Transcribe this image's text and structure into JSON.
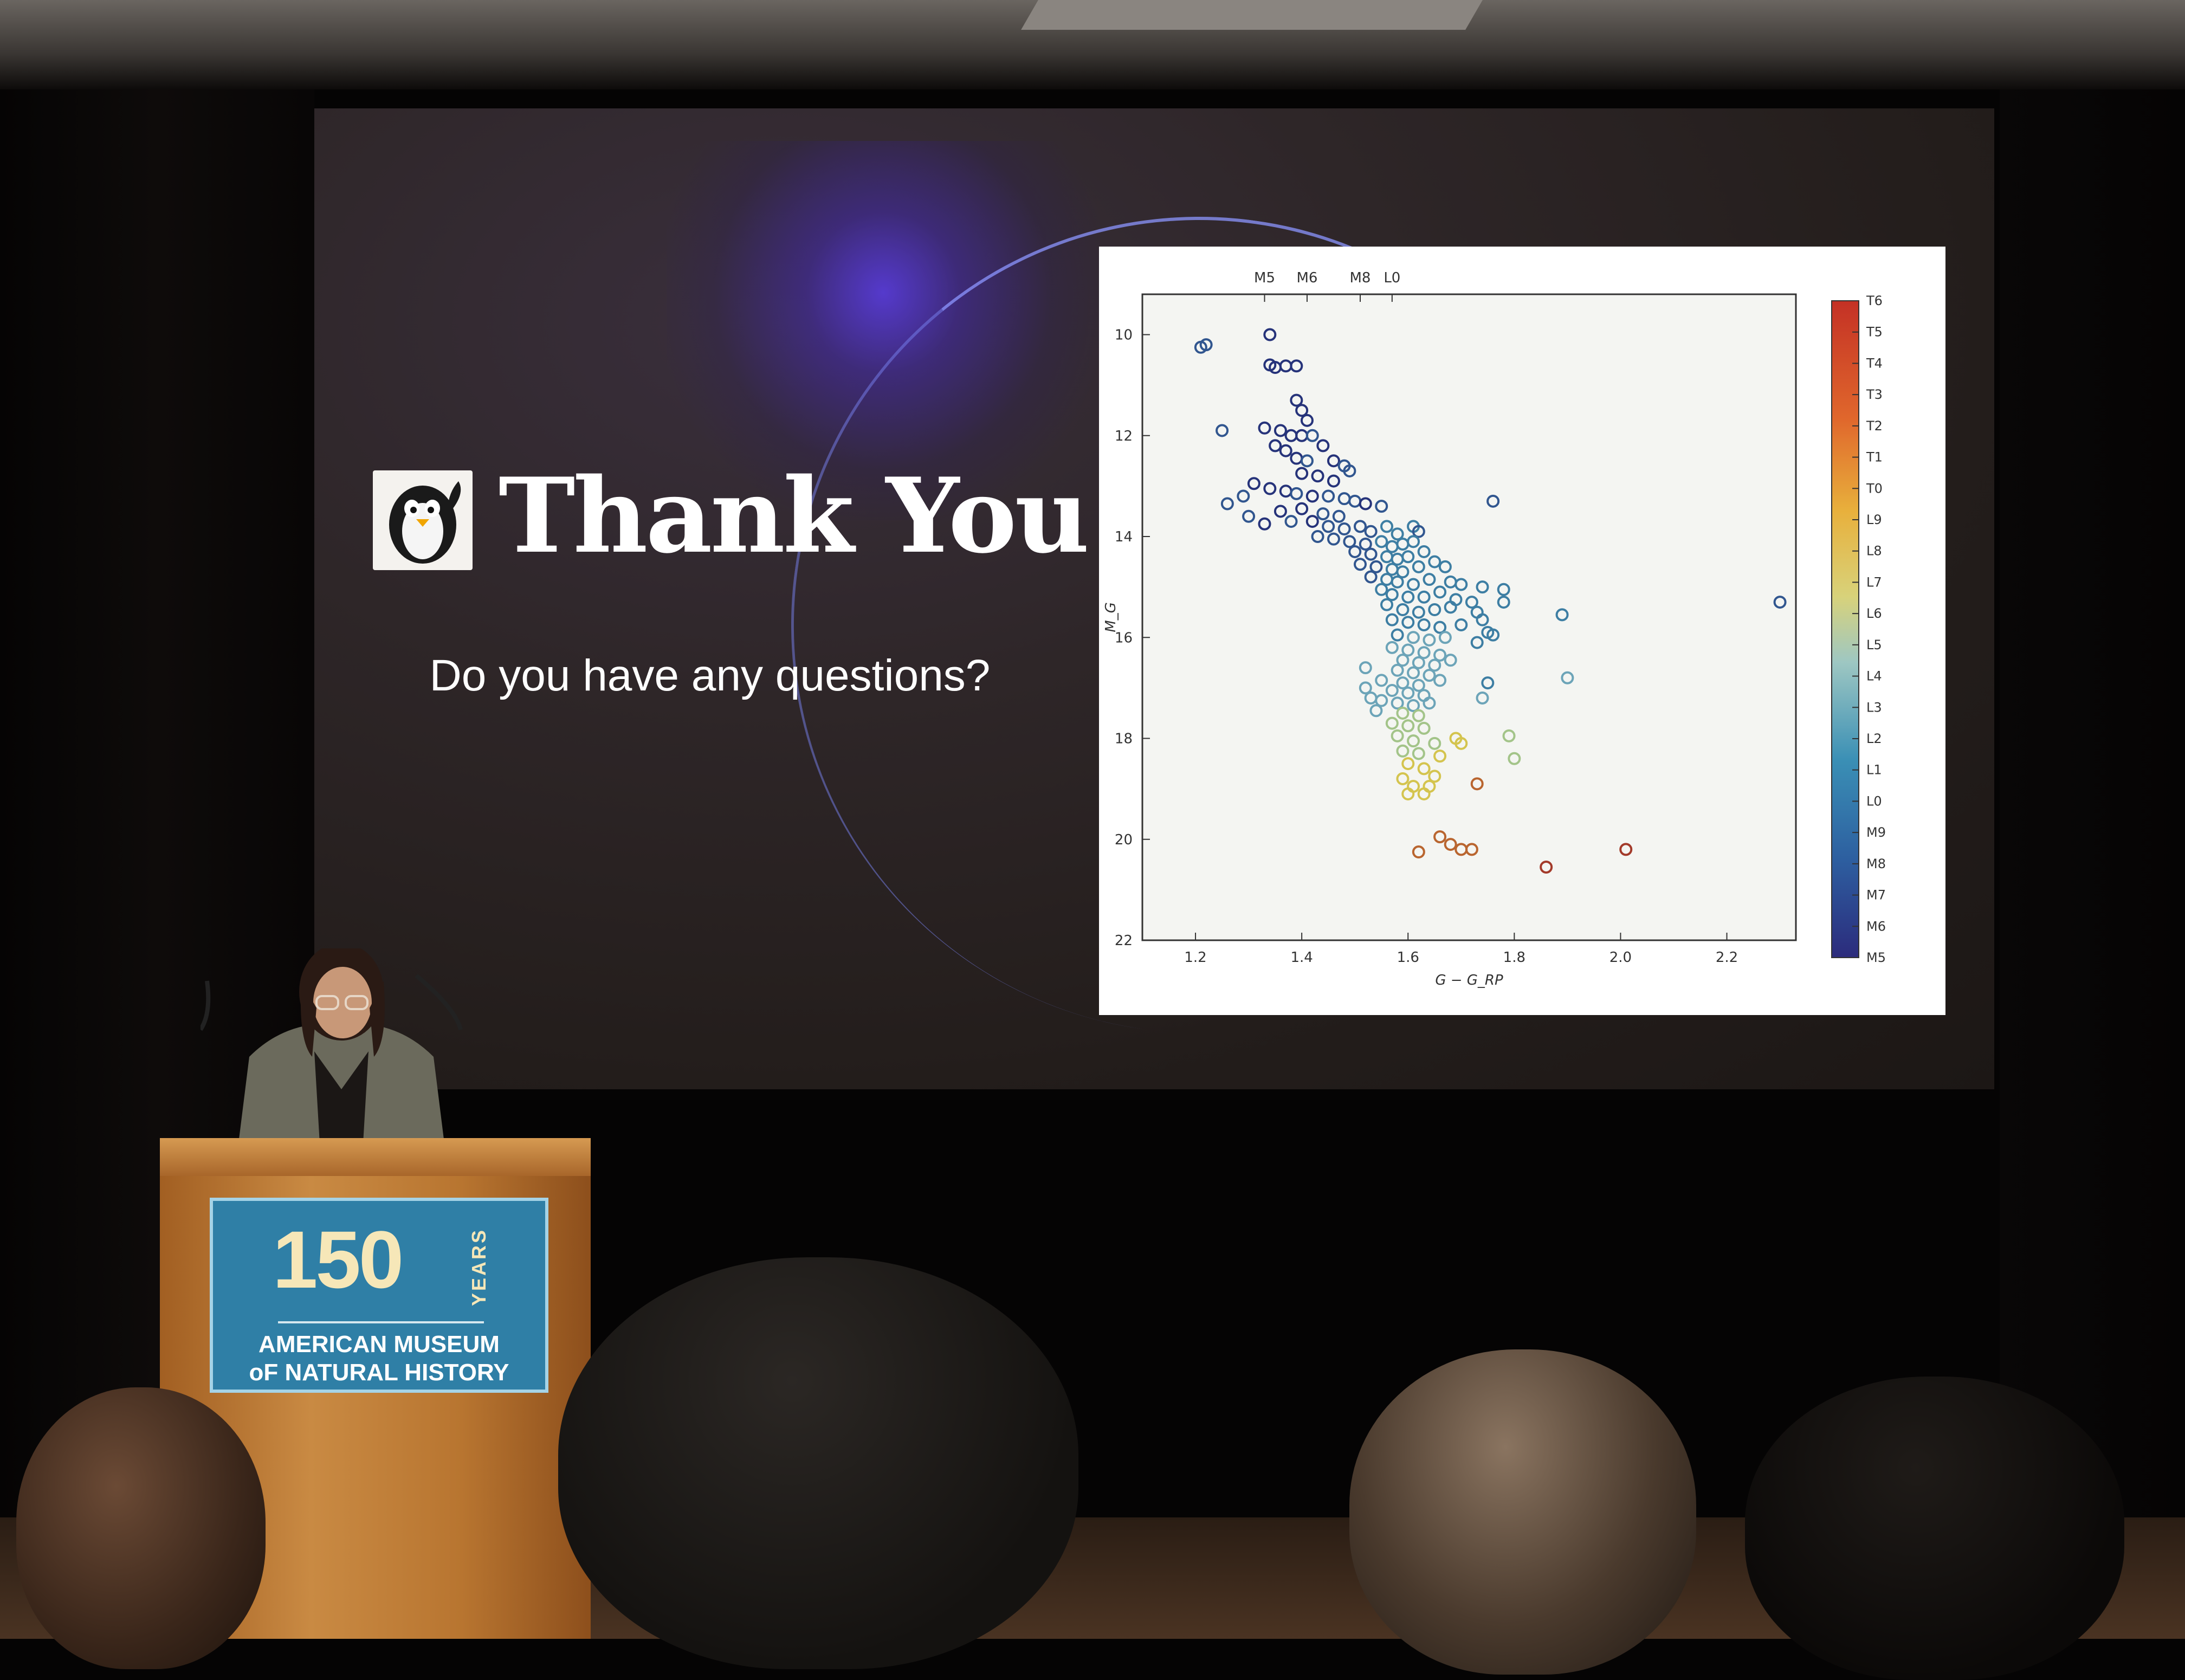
{
  "slide": {
    "title": "Thank You",
    "subtitle": "Do you have any questions?",
    "logo_icon": "penguin-icon"
  },
  "podium_sign": {
    "number": "150",
    "years": "YEARS",
    "line1": "AMERICAN MUSEUM",
    "line2": "oF NATURAL HISTORY"
  },
  "chart_data": {
    "type": "scatter",
    "title": "",
    "xlabel": "G − G_RP",
    "ylabel": "M_G",
    "xlim": [
      1.1,
      2.33
    ],
    "ylim": [
      22,
      9.2
    ],
    "y_inverted": true,
    "x_ticks": [
      "1.2",
      "1.4",
      "1.6",
      "1.8",
      "2.0",
      "2.2"
    ],
    "x_tick_values": [
      1.2,
      1.4,
      1.6,
      1.8,
      2.0,
      2.2
    ],
    "y_ticks": [
      "10",
      "12",
      "14",
      "16",
      "18",
      "20",
      "22"
    ],
    "y_tick_values": [
      10,
      12,
      14,
      16,
      18,
      20,
      22
    ],
    "top_ticks": [
      "M5",
      "M6",
      "M8",
      "L0"
    ],
    "top_tick_values": [
      1.33,
      1.41,
      1.51,
      1.57
    ],
    "colorbar_labels": [
      "T6",
      "T5",
      "T4",
      "T3",
      "T2",
      "T1",
      "T0",
      "L9",
      "L8",
      "L7",
      "L6",
      "L5",
      "L4",
      "L3",
      "L2",
      "L1",
      "L0",
      "M9",
      "M8",
      "M7",
      "M6",
      "M5"
    ],
    "marker": "open-circle",
    "points": [
      [
        1.21,
        10.25,
        1
      ],
      [
        1.22,
        10.2,
        1
      ],
      [
        1.34,
        10.0,
        0
      ],
      [
        1.34,
        10.6,
        0
      ],
      [
        1.35,
        10.65,
        0
      ],
      [
        1.37,
        10.62,
        0
      ],
      [
        1.39,
        10.62,
        0
      ],
      [
        1.25,
        11.9,
        1
      ],
      [
        1.39,
        11.3,
        0
      ],
      [
        1.4,
        11.5,
        0
      ],
      [
        1.41,
        11.7,
        0
      ],
      [
        1.33,
        11.85,
        0
      ],
      [
        1.36,
        11.9,
        0
      ],
      [
        1.38,
        12.0,
        0
      ],
      [
        1.4,
        12.0,
        0
      ],
      [
        1.42,
        12.0,
        1
      ],
      [
        1.35,
        12.2,
        0
      ],
      [
        1.37,
        12.3,
        0
      ],
      [
        1.44,
        12.2,
        0
      ],
      [
        1.39,
        12.45,
        0
      ],
      [
        1.41,
        12.5,
        1
      ],
      [
        1.46,
        12.5,
        0
      ],
      [
        1.48,
        12.6,
        1
      ],
      [
        1.4,
        12.75,
        0
      ],
      [
        1.43,
        12.8,
        0
      ],
      [
        1.46,
        12.9,
        0
      ],
      [
        1.49,
        12.7,
        1
      ],
      [
        1.31,
        12.95,
        0
      ],
      [
        1.34,
        13.05,
        0
      ],
      [
        1.37,
        13.1,
        0
      ],
      [
        1.39,
        13.15,
        1
      ],
      [
        1.42,
        13.2,
        0
      ],
      [
        1.45,
        13.2,
        1
      ],
      [
        1.48,
        13.25,
        1
      ],
      [
        1.5,
        13.3,
        1
      ],
      [
        1.52,
        13.35,
        0
      ],
      [
        1.29,
        13.2,
        1
      ],
      [
        1.26,
        13.35,
        1
      ],
      [
        1.3,
        13.6,
        1
      ],
      [
        1.36,
        13.5,
        0
      ],
      [
        1.4,
        13.45,
        0
      ],
      [
        1.44,
        13.55,
        1
      ],
      [
        1.47,
        13.6,
        1
      ],
      [
        1.55,
        13.4,
        1
      ],
      [
        1.33,
        13.75,
        0
      ],
      [
        1.38,
        13.7,
        1
      ],
      [
        1.42,
        13.7,
        0
      ],
      [
        1.45,
        13.8,
        1
      ],
      [
        1.48,
        13.85,
        1
      ],
      [
        1.51,
        13.8,
        1
      ],
      [
        1.53,
        13.9,
        1
      ],
      [
        1.56,
        13.8,
        2
      ],
      [
        1.58,
        13.95,
        2
      ],
      [
        1.61,
        13.8,
        2
      ],
      [
        1.62,
        13.9,
        1
      ],
      [
        1.43,
        14.0,
        1
      ],
      [
        1.46,
        14.05,
        1
      ],
      [
        1.49,
        14.1,
        1
      ],
      [
        1.52,
        14.15,
        1
      ],
      [
        1.55,
        14.1,
        2
      ],
      [
        1.57,
        14.2,
        2
      ],
      [
        1.59,
        14.15,
        2
      ],
      [
        1.61,
        14.1,
        2
      ],
      [
        1.5,
        14.3,
        1
      ],
      [
        1.53,
        14.35,
        1
      ],
      [
        1.56,
        14.4,
        2
      ],
      [
        1.58,
        14.45,
        2
      ],
      [
        1.6,
        14.4,
        2
      ],
      [
        1.63,
        14.3,
        2
      ],
      [
        1.51,
        14.55,
        1
      ],
      [
        1.54,
        14.6,
        1
      ],
      [
        1.57,
        14.65,
        2
      ],
      [
        1.59,
        14.7,
        2
      ],
      [
        1.62,
        14.6,
        2
      ],
      [
        1.65,
        14.5,
        2
      ],
      [
        1.67,
        14.6,
        2
      ],
      [
        1.53,
        14.8,
        1
      ],
      [
        1.56,
        14.85,
        2
      ],
      [
        1.58,
        14.9,
        2
      ],
      [
        1.61,
        14.95,
        2
      ],
      [
        1.64,
        14.85,
        2
      ],
      [
        1.68,
        14.9,
        2
      ],
      [
        1.7,
        14.95,
        2
      ],
      [
        1.74,
        15.0,
        2
      ],
      [
        1.55,
        15.05,
        2
      ],
      [
        1.57,
        15.15,
        2
      ],
      [
        1.6,
        15.2,
        2
      ],
      [
        1.63,
        15.2,
        2
      ],
      [
        1.66,
        15.1,
        2
      ],
      [
        1.69,
        15.25,
        2
      ],
      [
        1.72,
        15.3,
        2
      ],
      [
        1.56,
        15.35,
        2
      ],
      [
        1.59,
        15.45,
        2
      ],
      [
        1.62,
        15.5,
        2
      ],
      [
        1.65,
        15.45,
        2
      ],
      [
        1.68,
        15.4,
        2
      ],
      [
        1.73,
        15.5,
        2
      ],
      [
        1.78,
        15.3,
        2
      ],
      [
        1.57,
        15.65,
        2
      ],
      [
        1.6,
        15.7,
        2
      ],
      [
        1.63,
        15.75,
        2
      ],
      [
        1.66,
        15.8,
        2
      ],
      [
        1.7,
        15.75,
        2
      ],
      [
        1.75,
        15.9,
        2
      ],
      [
        1.58,
        15.95,
        2
      ],
      [
        1.61,
        16.0,
        3
      ],
      [
        1.64,
        16.05,
        3
      ],
      [
        1.67,
        16.0,
        3
      ],
      [
        1.73,
        16.1,
        2
      ],
      [
        1.57,
        16.2,
        3
      ],
      [
        1.6,
        16.25,
        3
      ],
      [
        1.63,
        16.3,
        3
      ],
      [
        1.66,
        16.35,
        3
      ],
      [
        1.59,
        16.45,
        3
      ],
      [
        1.62,
        16.5,
        3
      ],
      [
        1.65,
        16.55,
        3
      ],
      [
        1.68,
        16.45,
        3
      ],
      [
        1.58,
        16.65,
        3
      ],
      [
        1.61,
        16.7,
        3
      ],
      [
        1.64,
        16.75,
        3
      ],
      [
        1.55,
        16.85,
        3
      ],
      [
        1.59,
        16.9,
        3
      ],
      [
        1.62,
        16.95,
        3
      ],
      [
        1.66,
        16.85,
        3
      ],
      [
        1.57,
        17.05,
        3
      ],
      [
        1.6,
        17.1,
        3
      ],
      [
        1.63,
        17.15,
        3
      ],
      [
        1.55,
        17.25,
        3
      ],
      [
        1.58,
        17.3,
        3
      ],
      [
        1.61,
        17.35,
        3
      ],
      [
        1.64,
        17.3,
        3
      ],
      [
        1.59,
        17.5,
        4
      ],
      [
        1.62,
        17.55,
        4
      ],
      [
        1.57,
        17.7,
        4
      ],
      [
        1.6,
        17.75,
        4
      ],
      [
        1.63,
        17.8,
        4
      ],
      [
        1.58,
        17.95,
        4
      ],
      [
        1.61,
        18.05,
        4
      ],
      [
        1.65,
        18.1,
        4
      ],
      [
        1.69,
        18.0,
        5
      ],
      [
        1.7,
        18.1,
        5
      ],
      [
        1.59,
        18.25,
        4
      ],
      [
        1.62,
        18.3,
        4
      ],
      [
        1.66,
        18.35,
        5
      ],
      [
        1.6,
        18.5,
        5
      ],
      [
        1.63,
        18.6,
        5
      ],
      [
        1.65,
        18.75,
        5
      ],
      [
        1.59,
        18.8,
        5
      ],
      [
        1.61,
        18.95,
        5
      ],
      [
        1.64,
        18.95,
        5
      ],
      [
        1.6,
        19.1,
        5
      ],
      [
        1.63,
        19.1,
        5
      ],
      [
        1.76,
        13.3,
        1
      ],
      [
        1.78,
        15.05,
        2
      ],
      [
        1.74,
        15.65,
        2
      ],
      [
        1.76,
        15.95,
        2
      ],
      [
        1.89,
        15.55,
        2
      ],
      [
        1.9,
        16.8,
        3
      ],
      [
        1.75,
        16.9,
        2
      ],
      [
        1.74,
        17.2,
        3
      ],
      [
        1.79,
        17.95,
        4
      ],
      [
        1.8,
        18.4,
        4
      ],
      [
        1.73,
        18.9,
        6
      ],
      [
        1.66,
        19.95,
        6
      ],
      [
        1.68,
        20.1,
        6
      ],
      [
        1.7,
        20.2,
        6
      ],
      [
        1.72,
        20.2,
        6
      ],
      [
        1.62,
        20.25,
        6
      ],
      [
        1.86,
        20.55,
        7
      ],
      [
        2.01,
        20.2,
        7
      ],
      [
        2.3,
        15.3,
        1
      ],
      [
        1.52,
        17.0,
        3
      ],
      [
        1.53,
        17.2,
        3
      ],
      [
        1.54,
        17.45,
        3
      ],
      [
        1.52,
        16.6,
        3
      ]
    ],
    "color_groups": [
      "#26337a",
      "#31568f",
      "#3d7ea3",
      "#6ca4b8",
      "#a3c489",
      "#d4c44e",
      "#b9652f",
      "#a33a2a"
    ]
  }
}
